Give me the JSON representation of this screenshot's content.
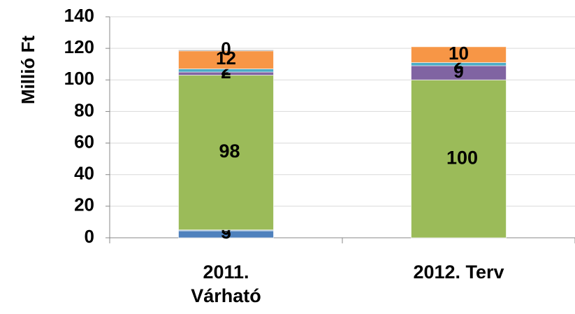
{
  "chart_data": {
    "type": "stacked_bar",
    "y_label": "Millió Ft",
    "categories": [
      "2011. Várható",
      "2012. Terv"
    ],
    "series": [
      {
        "color": "#4f81bd",
        "values": [
          5,
          null
        ]
      },
      {
        "color": "#95b3d7",
        "values": [
          0,
          null
        ]
      },
      {
        "color": "#9bbb59",
        "values": [
          98,
          100
        ]
      },
      {
        "color": "#8064a2",
        "values": [
          2,
          9
        ]
      },
      {
        "color": "#4bacc6",
        "values": [
          2,
          2
        ]
      },
      {
        "color": "#f79646",
        "values": [
          12,
          10
        ]
      },
      {
        "color": "#a5a5a5",
        "values": [
          0,
          null
        ]
      }
    ],
    "ylim": [
      0,
      140
    ],
    "yticks": [
      0,
      20,
      40,
      60,
      80,
      100,
      120,
      140
    ],
    "grid": true
  }
}
